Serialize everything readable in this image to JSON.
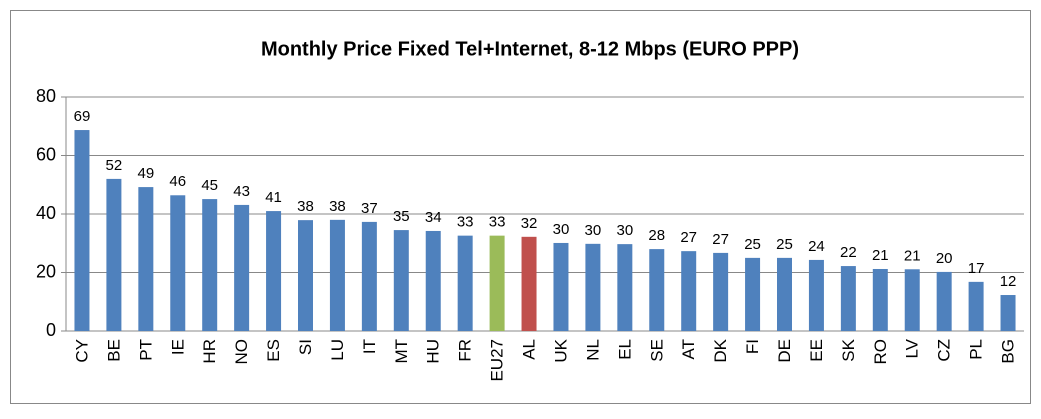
{
  "chart_data": {
    "type": "bar",
    "title": "Monthly Price Fixed Tel+Internet, 8-12 Mbps (EURO PPP)",
    "categories": [
      "CY",
      "BE",
      "PT",
      "IE",
      "HR",
      "NO",
      "ES",
      "SI",
      "LU",
      "IT",
      "MT",
      "HU",
      "FR",
      "EU27",
      "AL",
      "UK",
      "NL",
      "EL",
      "SE",
      "AT",
      "DK",
      "FI",
      "DE",
      "EE",
      "SK",
      "RO",
      "LV",
      "CZ",
      "PL",
      "BG"
    ],
    "values": [
      68.7,
      52.0,
      49.2,
      46.4,
      45.1,
      43.1,
      41.0,
      37.9,
      38.0,
      37.3,
      34.5,
      34.2,
      32.6,
      32.6,
      32.2,
      30.1,
      29.8,
      29.7,
      28.0,
      27.3,
      26.7,
      25.0,
      25.0,
      24.3,
      22.2,
      21.2,
      21.1,
      20.2,
      16.8,
      12.3
    ],
    "value_labels": [
      "69",
      "52",
      "49",
      "46",
      "45",
      "43",
      "41",
      "38",
      "38",
      "37",
      "35",
      "34",
      "33",
      "33",
      "32",
      "30",
      "30",
      "30",
      "28",
      "27",
      "27",
      "25",
      "25",
      "24",
      "22",
      "21",
      "21",
      "20",
      "17",
      "12"
    ],
    "colors": [
      "#4f81bd",
      "#4f81bd",
      "#4f81bd",
      "#4f81bd",
      "#4f81bd",
      "#4f81bd",
      "#4f81bd",
      "#4f81bd",
      "#4f81bd",
      "#4f81bd",
      "#4f81bd",
      "#4f81bd",
      "#4f81bd",
      "#9bbb59",
      "#c0504d",
      "#4f81bd",
      "#4f81bd",
      "#4f81bd",
      "#4f81bd",
      "#4f81bd",
      "#4f81bd",
      "#4f81bd",
      "#4f81bd",
      "#4f81bd",
      "#4f81bd",
      "#4f81bd",
      "#4f81bd",
      "#4f81bd",
      "#4f81bd",
      "#4f81bd"
    ],
    "ylim": [
      0,
      80
    ],
    "yticks": [
      0,
      20,
      40,
      60,
      80
    ],
    "grid": true
  }
}
